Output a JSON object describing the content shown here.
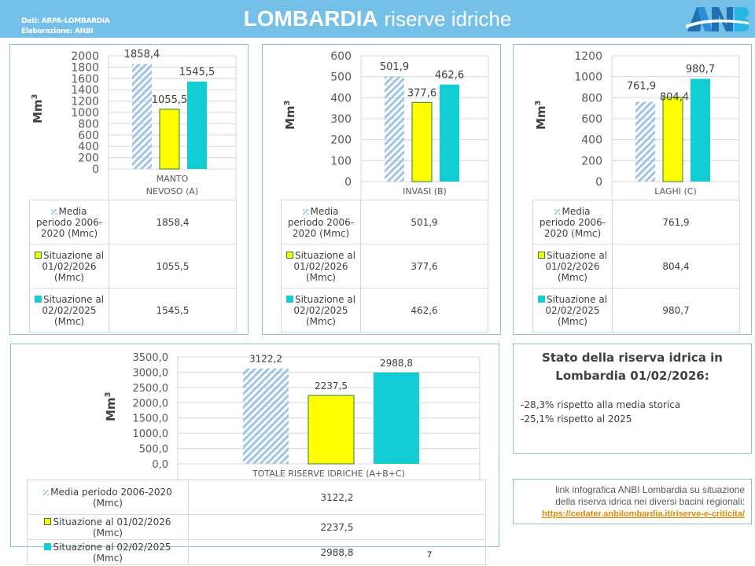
{
  "header": {
    "source_line1": "Dati: ARPA-LOMBARDIA",
    "source_line2": "Elaborazione: ANBI",
    "title_bold": "LOMBARDIA",
    "title_rest": "riserve idriche",
    "logo_text": "ANBI"
  },
  "colors": {
    "header": "#74c0e8",
    "media": "#9ec5e8",
    "situazione_2026": "#ffff00",
    "situazione_2025": "#12cdd4",
    "panel_border": "#8bbfd6"
  },
  "legend": {
    "media_short": "Media periodo 2006-2020 (Mmc)",
    "s2026_short": "Situazione al 01/02/2026 (Mmc)",
    "s2025_short": "Situazione al 02/02/2025 (Mmc)"
  },
  "chart_data": [
    {
      "type": "bar",
      "category": "MANTO NEVOSO (A)",
      "category_lines": [
        "MANTO",
        "NEVOSO (A)"
      ],
      "ylabel": "Mm3",
      "ylim": [
        0,
        2000
      ],
      "yticks": [
        "0",
        "200",
        "400",
        "600",
        "800",
        "1000",
        "1200",
        "1400",
        "1600",
        "1800",
        "2000"
      ],
      "series": [
        {
          "name": "Media periodo 2006-2020 (Mmc)",
          "value": 1858.4,
          "label": "1858,4"
        },
        {
          "name": "Situazione al 01/02/2026 (Mmc)",
          "value": 1055.5,
          "label": "1055,5"
        },
        {
          "name": "Situazione al 02/02/2025 (Mmc)",
          "value": 1545.5,
          "label": "1545,5"
        }
      ],
      "grid": true
    },
    {
      "type": "bar",
      "category": "INVASI (B)",
      "category_lines": [
        "INVASI (B)"
      ],
      "ylabel": "Mm3",
      "ylim": [
        0,
        600
      ],
      "yticks": [
        "0",
        "100",
        "200",
        "300",
        "400",
        "500",
        "600"
      ],
      "series": [
        {
          "name": "Media periodo 2006-2020 (Mmc)",
          "value": 501.9,
          "label": "501,9"
        },
        {
          "name": "Situazione al 01/02/2026 (Mmc)",
          "value": 377.6,
          "label": "377,6"
        },
        {
          "name": "Situazione al 02/02/2025 (Mmc)",
          "value": 462.6,
          "label": "462,6"
        }
      ],
      "grid": true
    },
    {
      "type": "bar",
      "category": "LAGHI (C)",
      "category_lines": [
        "LAGHI (C)"
      ],
      "ylabel": "Mm3",
      "ylim": [
        0,
        1200
      ],
      "yticks": [
        "0",
        "200",
        "400",
        "600",
        "800",
        "1000",
        "1200"
      ],
      "series": [
        {
          "name": "Media periodo 2006-2020 (Mmc)",
          "value": 761.9,
          "label": "761,9"
        },
        {
          "name": "Situazione al 01/02/2026 (Mmc)",
          "value": 804.4,
          "label": "804,4"
        },
        {
          "name": "Situazione al 02/02/2025 (Mmc)",
          "value": 980.7,
          "label": "980,7"
        }
      ],
      "grid": true
    },
    {
      "type": "bar",
      "category": "TOTALE RISERVE IDRICHE (A+B+C)",
      "category_lines": [
        "TOTALE RISERVE IDRICHE (A+B+C)"
      ],
      "ylabel": "Mm3",
      "ylim": [
        0,
        3500
      ],
      "yticks": [
        "0,0",
        "500,0",
        "1000,0",
        "1500,0",
        "2000,0",
        "2500,0",
        "3000,0",
        "3500,0"
      ],
      "series": [
        {
          "name": "Media periodo 2006-2020 (Mmc)",
          "value": 3122.2,
          "label": "3122,2"
        },
        {
          "name": "Situazione al 01/02/2026 (Mmc)",
          "value": 2237.5,
          "label": "2237,5"
        },
        {
          "name": "Situazione al 02/02/2025 (Mmc)",
          "value": 2988.8,
          "label": "2988,8"
        }
      ],
      "grid": true
    }
  ],
  "stato": {
    "title_line1": "Stato della riserva idrica in",
    "title_line2": "Lombardia 01/02/2026:",
    "line1": "-28,3% rispetto alla media storica",
    "line2": "-25,1% rispetto al 2025"
  },
  "link": {
    "line1": "link infografica ANBI Lombardia su situazione",
    "line2": "della riserva idrica nei diversi bacini regionali:",
    "url": "https://cedater.anbilombardia.it/riserve-e-criticita/"
  },
  "page_number": "7"
}
